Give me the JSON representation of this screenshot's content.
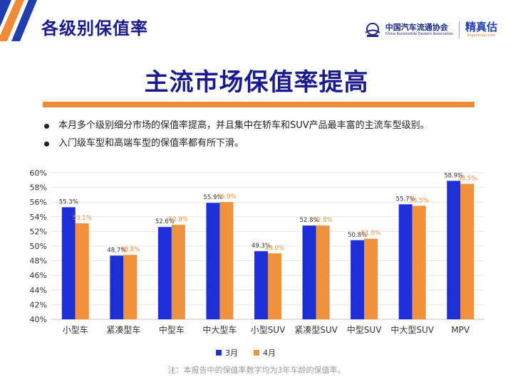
{
  "header": {
    "title": "各级别保值率"
  },
  "logo": {
    "org_cn": "中国汽车流通协会",
    "org_en": "China Automobile Dealers Association",
    "brand_cn": "精真估",
    "brand_en": "jingzhengu.com"
  },
  "main_title": "主流市场保值率提高",
  "bullets": [
    "本月多个级别细分市场的保值率提高，并且集中在轿车和SUV产品最丰富的主流车型级别。",
    "入门级车型和高端车型的保值率都有所下滑。"
  ],
  "note": "注：本报告中的保值率数字均为3年车龄的保值率。",
  "colors": {
    "march": "#1f2fd8",
    "april": "#f0913c",
    "title": "#1a1a8c",
    "accent": "#ef8a36"
  },
  "chart_data": {
    "type": "bar",
    "categories": [
      "小型车",
      "紧凑型车",
      "中型车",
      "中大型车",
      "小型SUV",
      "紧凑型SUV",
      "中型SUV",
      "中大型SUV",
      "MPV"
    ],
    "series": [
      {
        "name": "3月",
        "values": [
          55.3,
          48.7,
          52.6,
          55.9,
          49.3,
          52.8,
          50.8,
          55.7,
          58.9
        ],
        "labels": [
          "55.3%",
          "48.7%",
          "52.6%",
          "55.9%",
          "49.3%",
          "52.8%",
          "50.8%",
          "55.7%",
          "58.9%"
        ]
      },
      {
        "name": "4月",
        "values": [
          53.1,
          48.8,
          52.9,
          56.0,
          49.0,
          52.8,
          51.0,
          55.5,
          58.5
        ],
        "labels": [
          "53.1%",
          "48.8%",
          "52.9%",
          "56.0%",
          "49.0%",
          "52.8%",
          "51.0%",
          "55.5%",
          "58.5%"
        ]
      }
    ],
    "yticks": [
      "40%",
      "42%",
      "44%",
      "46%",
      "48%",
      "50%",
      "52%",
      "54%",
      "56%",
      "58%",
      "60%"
    ],
    "ylim": [
      40,
      60
    ],
    "unit": "%",
    "grid": true,
    "legend": "bottom"
  }
}
